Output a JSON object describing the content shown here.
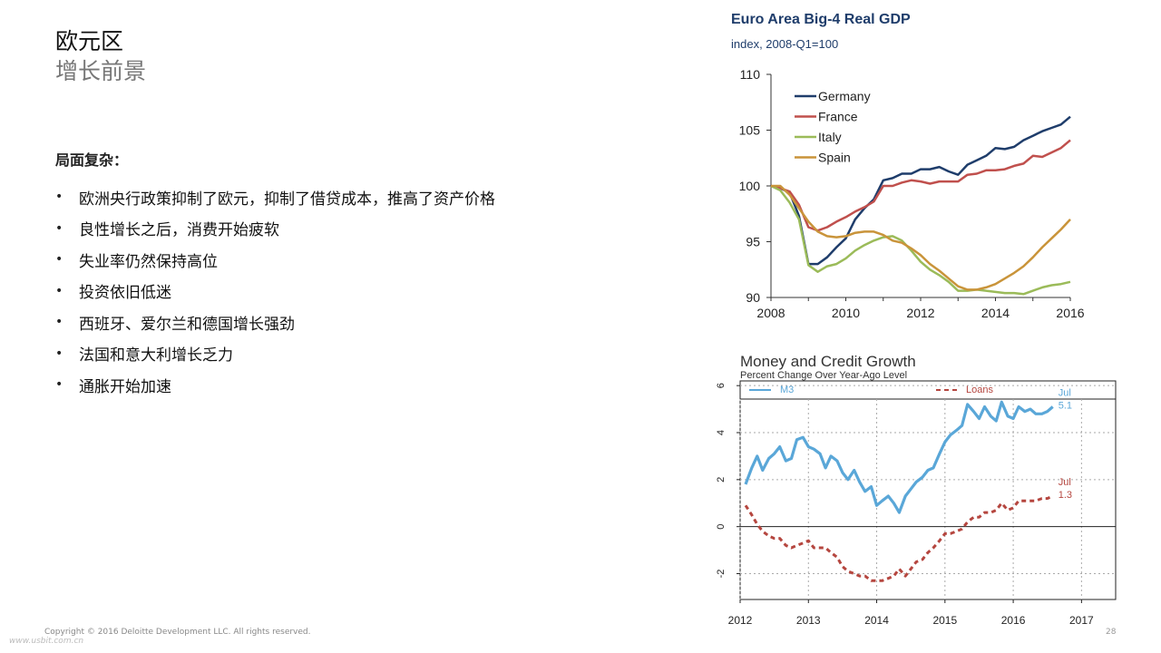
{
  "slide": {
    "title": "欧元区",
    "subtitle": "增长前景",
    "section_heading": "局面复杂：",
    "bullets": [
      " 欧洲央行政策抑制了欧元，抑制了借贷成本，推高了资产价格",
      "良性增长之后，消费开始疲软",
      "失业率仍然保持高位",
      "投资依旧低迷",
      "西班牙、爱尔兰和德国增长强劲",
      "法国和意大利增长乏力",
      "通胀开始加速"
    ],
    "bullet_symbol": "•"
  },
  "footer": {
    "copyright": "Copyright © 2016 Deloitte Development LLC. All rights reserved.",
    "watermark": "www.usbit.com.cn",
    "page_number": "28"
  },
  "chart_data": [
    {
      "type": "line",
      "title": "Euro Area Big-4 Real GDP",
      "subtitle": "index, 2008-Q1=100",
      "xlabel": "",
      "ylabel": "",
      "xlim": [
        2008,
        2016
      ],
      "ylim": [
        90,
        110
      ],
      "x_ticks": [
        2008,
        2010,
        2012,
        2014,
        2016
      ],
      "y_ticks": [
        90,
        95,
        100,
        105,
        110
      ],
      "legend_position": "top-left",
      "grid": false,
      "series": [
        {
          "name": "Germany",
          "color": "#1f3d6b",
          "points": [
            [
              2008,
              100
            ],
            [
              2008.25,
              99.8
            ],
            [
              2008.5,
              99.4
            ],
            [
              2008.75,
              97.3
            ],
            [
              2009,
              93.0
            ],
            [
              2009.25,
              93.0
            ],
            [
              2009.5,
              93.6
            ],
            [
              2009.75,
              94.5
            ],
            [
              2010,
              95.3
            ],
            [
              2010.25,
              97.0
            ],
            [
              2010.5,
              98.0
            ],
            [
              2010.75,
              98.8
            ],
            [
              2011,
              100.5
            ],
            [
              2011.25,
              100.7
            ],
            [
              2011.5,
              101.1
            ],
            [
              2011.75,
              101.1
            ],
            [
              2012,
              101.5
            ],
            [
              2012.25,
              101.5
            ],
            [
              2012.5,
              101.7
            ],
            [
              2012.75,
              101.3
            ],
            [
              2013,
              101.0
            ],
            [
              2013.25,
              101.9
            ],
            [
              2013.5,
              102.3
            ],
            [
              2013.75,
              102.7
            ],
            [
              2014,
              103.4
            ],
            [
              2014.25,
              103.3
            ],
            [
              2014.5,
              103.5
            ],
            [
              2014.75,
              104.1
            ],
            [
              2015,
              104.5
            ],
            [
              2015.25,
              104.9
            ],
            [
              2015.5,
              105.2
            ],
            [
              2015.75,
              105.5
            ],
            [
              2016,
              106.2
            ]
          ]
        },
        {
          "name": "France",
          "color": "#c0504d",
          "points": [
            [
              2008,
              100
            ],
            [
              2008.25,
              99.8
            ],
            [
              2008.5,
              99.5
            ],
            [
              2008.75,
              98.3
            ],
            [
              2009,
              96.3
            ],
            [
              2009.25,
              96.0
            ],
            [
              2009.5,
              96.3
            ],
            [
              2009.75,
              96.8
            ],
            [
              2010,
              97.2
            ],
            [
              2010.25,
              97.7
            ],
            [
              2010.5,
              98.1
            ],
            [
              2010.75,
              98.6
            ],
            [
              2011,
              100.0
            ],
            [
              2011.25,
              100.0
            ],
            [
              2011.5,
              100.3
            ],
            [
              2011.75,
              100.5
            ],
            [
              2012,
              100.4
            ],
            [
              2012.25,
              100.2
            ],
            [
              2012.5,
              100.4
            ],
            [
              2012.75,
              100.4
            ],
            [
              2013,
              100.4
            ],
            [
              2013.25,
              101.0
            ],
            [
              2013.5,
              101.1
            ],
            [
              2013.75,
              101.4
            ],
            [
              2014,
              101.4
            ],
            [
              2014.25,
              101.5
            ],
            [
              2014.5,
              101.8
            ],
            [
              2014.75,
              102.0
            ],
            [
              2015,
              102.7
            ],
            [
              2015.25,
              102.6
            ],
            [
              2015.5,
              103.0
            ],
            [
              2015.75,
              103.4
            ],
            [
              2016,
              104.1
            ]
          ]
        },
        {
          "name": "Italy",
          "color": "#9bbb59",
          "points": [
            [
              2008,
              100
            ],
            [
              2008.25,
              99.6
            ],
            [
              2008.5,
              98.5
            ],
            [
              2008.75,
              97.0
            ],
            [
              2009,
              92.9
            ],
            [
              2009.25,
              92.3
            ],
            [
              2009.5,
              92.8
            ],
            [
              2009.75,
              93.0
            ],
            [
              2010,
              93.5
            ],
            [
              2010.25,
              94.2
            ],
            [
              2010.5,
              94.7
            ],
            [
              2010.75,
              95.1
            ],
            [
              2011,
              95.4
            ],
            [
              2011.25,
              95.5
            ],
            [
              2011.5,
              95.1
            ],
            [
              2011.75,
              94.2
            ],
            [
              2012,
              93.2
            ],
            [
              2012.25,
              92.5
            ],
            [
              2012.5,
              92.0
            ],
            [
              2012.75,
              91.4
            ],
            [
              2013,
              90.6
            ],
            [
              2013.25,
              90.6
            ],
            [
              2013.5,
              90.7
            ],
            [
              2013.75,
              90.6
            ],
            [
              2014,
              90.5
            ],
            [
              2014.25,
              90.4
            ],
            [
              2014.5,
              90.4
            ],
            [
              2014.75,
              90.3
            ],
            [
              2015,
              90.6
            ],
            [
              2015.25,
              90.9
            ],
            [
              2015.5,
              91.1
            ],
            [
              2015.75,
              91.2
            ],
            [
              2016,
              91.4
            ]
          ]
        },
        {
          "name": "Spain",
          "color": "#c9943a",
          "points": [
            [
              2008,
              100
            ],
            [
              2008.25,
              100
            ],
            [
              2008.5,
              99.2
            ],
            [
              2008.75,
              98.0
            ],
            [
              2009,
              96.8
            ],
            [
              2009.25,
              95.9
            ],
            [
              2009.5,
              95.5
            ],
            [
              2009.75,
              95.4
            ],
            [
              2010,
              95.5
            ],
            [
              2010.25,
              95.8
            ],
            [
              2010.5,
              95.9
            ],
            [
              2010.75,
              95.9
            ],
            [
              2011,
              95.6
            ],
            [
              2011.25,
              95.1
            ],
            [
              2011.5,
              94.9
            ],
            [
              2011.75,
              94.4
            ],
            [
              2012,
              93.8
            ],
            [
              2012.25,
              93.0
            ],
            [
              2012.5,
              92.4
            ],
            [
              2012.75,
              91.7
            ],
            [
              2013,
              91.0
            ],
            [
              2013.25,
              90.7
            ],
            [
              2013.5,
              90.7
            ],
            [
              2013.75,
              90.9
            ],
            [
              2014,
              91.2
            ],
            [
              2014.25,
              91.7
            ],
            [
              2014.5,
              92.2
            ],
            [
              2014.75,
              92.8
            ],
            [
              2015,
              93.6
            ],
            [
              2015.25,
              94.5
            ],
            [
              2015.5,
              95.3
            ],
            [
              2015.75,
              96.1
            ],
            [
              2016,
              97.0
            ]
          ]
        }
      ]
    },
    {
      "type": "line",
      "title": "Money and Credit Growth",
      "subtitle": "Percent Change Over Year-Ago Level",
      "xlabel": "",
      "ylabel": "",
      "xlim": [
        2012,
        2017.5
      ],
      "ylim": [
        -3.1,
        6.2
      ],
      "x_ticks": [
        2012,
        2013,
        2014,
        2015,
        2016,
        2017
      ],
      "y_ticks": [
        -2,
        0,
        2,
        4,
        6
      ],
      "y_tick_labels": [
        "-2",
        "0",
        "2",
        "4",
        "6"
      ],
      "grid": true,
      "legend_position": "top",
      "annotations": [
        {
          "series": "M3",
          "label_month": "Jul",
          "label_value": "5.1"
        },
        {
          "series": "Loans",
          "label_month": "Jul",
          "label_value": "1.3"
        }
      ],
      "series": [
        {
          "name": "M3",
          "color": "#5aa7d8",
          "dash": "solid",
          "points": [
            [
              2012.08,
              1.8
            ],
            [
              2012.17,
              2.5
            ],
            [
              2012.25,
              3.0
            ],
            [
              2012.33,
              2.4
            ],
            [
              2012.42,
              2.9
            ],
            [
              2012.5,
              3.1
            ],
            [
              2012.58,
              3.4
            ],
            [
              2012.67,
              2.8
            ],
            [
              2012.75,
              2.9
            ],
            [
              2012.83,
              3.7
            ],
            [
              2012.92,
              3.8
            ],
            [
              2013.0,
              3.4
            ],
            [
              2013.08,
              3.3
            ],
            [
              2013.17,
              3.1
            ],
            [
              2013.25,
              2.5
            ],
            [
              2013.33,
              3.0
            ],
            [
              2013.42,
              2.8
            ],
            [
              2013.5,
              2.3
            ],
            [
              2013.58,
              2.0
            ],
            [
              2013.67,
              2.4
            ],
            [
              2013.75,
              1.9
            ],
            [
              2013.83,
              1.5
            ],
            [
              2013.92,
              1.7
            ],
            [
              2014.0,
              0.9
            ],
            [
              2014.08,
              1.1
            ],
            [
              2014.17,
              1.3
            ],
            [
              2014.25,
              1.0
            ],
            [
              2014.33,
              0.6
            ],
            [
              2014.42,
              1.3
            ],
            [
              2014.5,
              1.6
            ],
            [
              2014.58,
              1.9
            ],
            [
              2014.67,
              2.1
            ],
            [
              2014.75,
              2.4
            ],
            [
              2014.83,
              2.5
            ],
            [
              2014.92,
              3.1
            ],
            [
              2015.0,
              3.6
            ],
            [
              2015.08,
              3.9
            ],
            [
              2015.17,
              4.1
            ],
            [
              2015.25,
              4.3
            ],
            [
              2015.33,
              5.2
            ],
            [
              2015.42,
              4.9
            ],
            [
              2015.5,
              4.6
            ],
            [
              2015.58,
              5.1
            ],
            [
              2015.67,
              4.7
            ],
            [
              2015.75,
              4.5
            ],
            [
              2015.83,
              5.3
            ],
            [
              2015.92,
              4.7
            ],
            [
              2016.0,
              4.6
            ],
            [
              2016.08,
              5.1
            ],
            [
              2016.17,
              4.9
            ],
            [
              2016.25,
              5.0
            ],
            [
              2016.33,
              4.8
            ],
            [
              2016.42,
              4.8
            ],
            [
              2016.5,
              4.9
            ],
            [
              2016.58,
              5.1
            ]
          ]
        },
        {
          "name": "Loans",
          "color": "#b5463f",
          "dash": "dashed",
          "points": [
            [
              2012.08,
              0.9
            ],
            [
              2012.17,
              0.5
            ],
            [
              2012.25,
              0.1
            ],
            [
              2012.33,
              -0.2
            ],
            [
              2012.42,
              -0.4
            ],
            [
              2012.5,
              -0.5
            ],
            [
              2012.58,
              -0.5
            ],
            [
              2012.67,
              -0.8
            ],
            [
              2012.75,
              -0.9
            ],
            [
              2012.83,
              -0.8
            ],
            [
              2012.92,
              -0.7
            ],
            [
              2013.0,
              -0.6
            ],
            [
              2013.08,
              -0.9
            ],
            [
              2013.17,
              -0.9
            ],
            [
              2013.25,
              -0.9
            ],
            [
              2013.33,
              -1.1
            ],
            [
              2013.42,
              -1.3
            ],
            [
              2013.5,
              -1.7
            ],
            [
              2013.58,
              -1.9
            ],
            [
              2013.67,
              -2.0
            ],
            [
              2013.75,
              -2.1
            ],
            [
              2013.83,
              -2.1
            ],
            [
              2013.92,
              -2.3
            ],
            [
              2014.0,
              -2.3
            ],
            [
              2014.08,
              -2.3
            ],
            [
              2014.17,
              -2.2
            ],
            [
              2014.25,
              -2.1
            ],
            [
              2014.33,
              -1.8
            ],
            [
              2014.42,
              -2.1
            ],
            [
              2014.5,
              -1.8
            ],
            [
              2014.58,
              -1.5
            ],
            [
              2014.67,
              -1.4
            ],
            [
              2014.75,
              -1.1
            ],
            [
              2014.83,
              -0.9
            ],
            [
              2014.92,
              -0.6
            ],
            [
              2015.0,
              -0.3
            ],
            [
              2015.08,
              -0.3
            ],
            [
              2015.17,
              -0.2
            ],
            [
              2015.25,
              -0.1
            ],
            [
              2015.33,
              0.2
            ],
            [
              2015.42,
              0.4
            ],
            [
              2015.5,
              0.4
            ],
            [
              2015.58,
              0.6
            ],
            [
              2015.67,
              0.6
            ],
            [
              2015.75,
              0.7
            ],
            [
              2015.83,
              1.0
            ],
            [
              2015.92,
              0.7
            ],
            [
              2016.0,
              0.8
            ],
            [
              2016.08,
              1.1
            ],
            [
              2016.17,
              1.1
            ],
            [
              2016.25,
              1.1
            ],
            [
              2016.33,
              1.1
            ],
            [
              2016.42,
              1.2
            ],
            [
              2016.5,
              1.2
            ],
            [
              2016.58,
              1.3
            ]
          ]
        }
      ]
    }
  ]
}
